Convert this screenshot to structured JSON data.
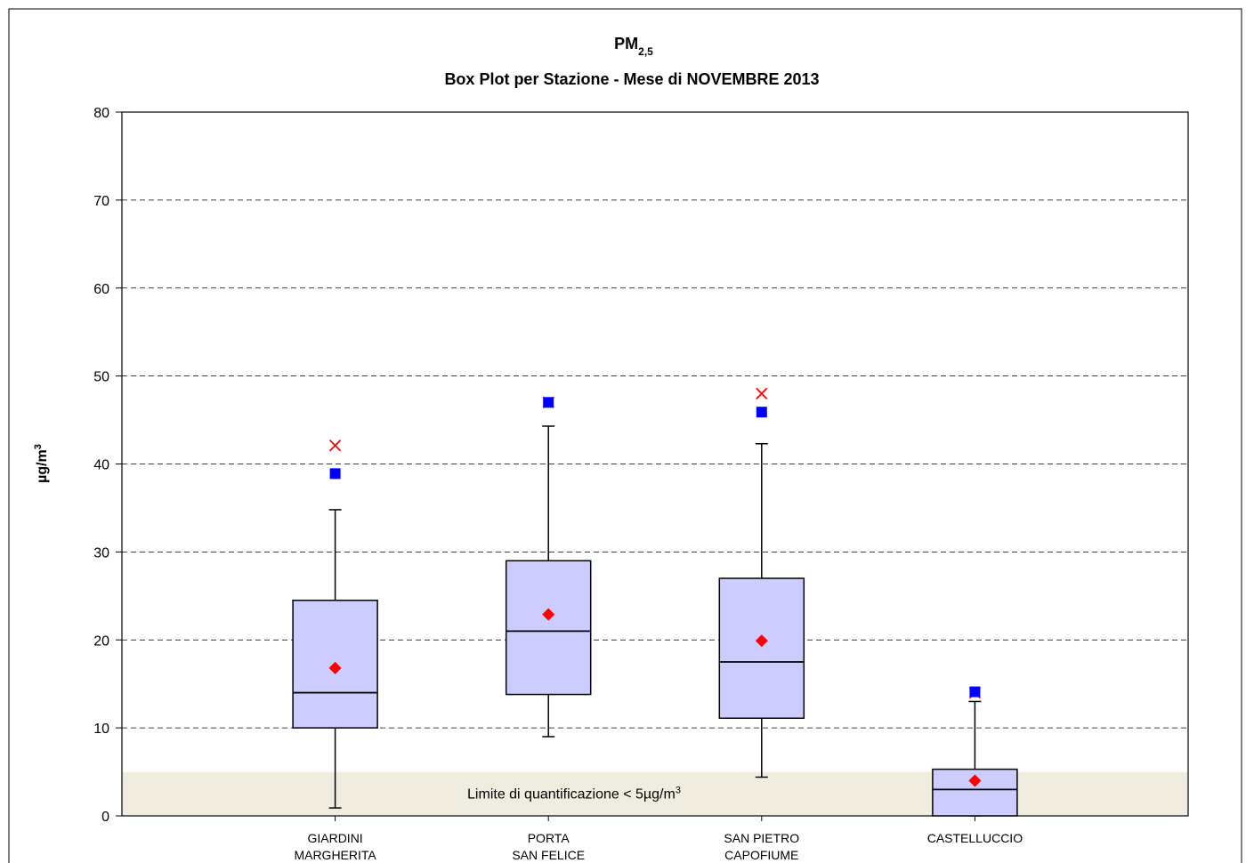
{
  "chart_data": {
    "type": "box",
    "title": "PM",
    "title_subscript": "2,5",
    "subtitle": "Box Plot per Stazione - Mese di NOVEMBRE 2013",
    "y_label": "µg/m",
    "y_label_superscript": "3",
    "shaded_band": {
      "from": 0,
      "to": 5,
      "label": "Limite di quantificazione < 5µg/m",
      "label_superscript": "3",
      "color": "#f0ede0"
    },
    "categories": [
      [
        "GIARDINI",
        "MARGHERITA"
      ],
      [
        "PORTA",
        "SAN FELICE"
      ],
      [
        "SAN PIETRO",
        "CAPOFIUME"
      ],
      [
        "CASTELLUCCIO"
      ]
    ],
    "boxes": [
      {
        "min": 0.9,
        "q1": 10,
        "median": 14,
        "q3": 24.5,
        "max": 34.8,
        "mean": 16.8,
        "square": 38.9,
        "cross": 42.1
      },
      {
        "min": 9,
        "q1": 13.8,
        "median": 21,
        "q3": 29,
        "max": 44.3,
        "mean": 22.9,
        "square": 47,
        "cross": 47
      },
      {
        "min": 4.4,
        "q1": 11.1,
        "median": 17.5,
        "q3": 27,
        "max": 42.3,
        "mean": 19.9,
        "square": 45.9,
        "cross": 48
      },
      {
        "min": 0,
        "q1": 0,
        "median": 3,
        "q3": 5.3,
        "max": 13,
        "mean": 4,
        "square": 14.1,
        "cross": 14
      }
    ],
    "box_color": "#ccccff",
    "mean_color": "#ff0000",
    "square_color": "#0000ff",
    "cross_color": "#ff0000",
    "ylim": [
      0,
      80
    ],
    "yticks": [
      0,
      10,
      20,
      30,
      40,
      50,
      60,
      70,
      80
    ],
    "grid": true
  }
}
